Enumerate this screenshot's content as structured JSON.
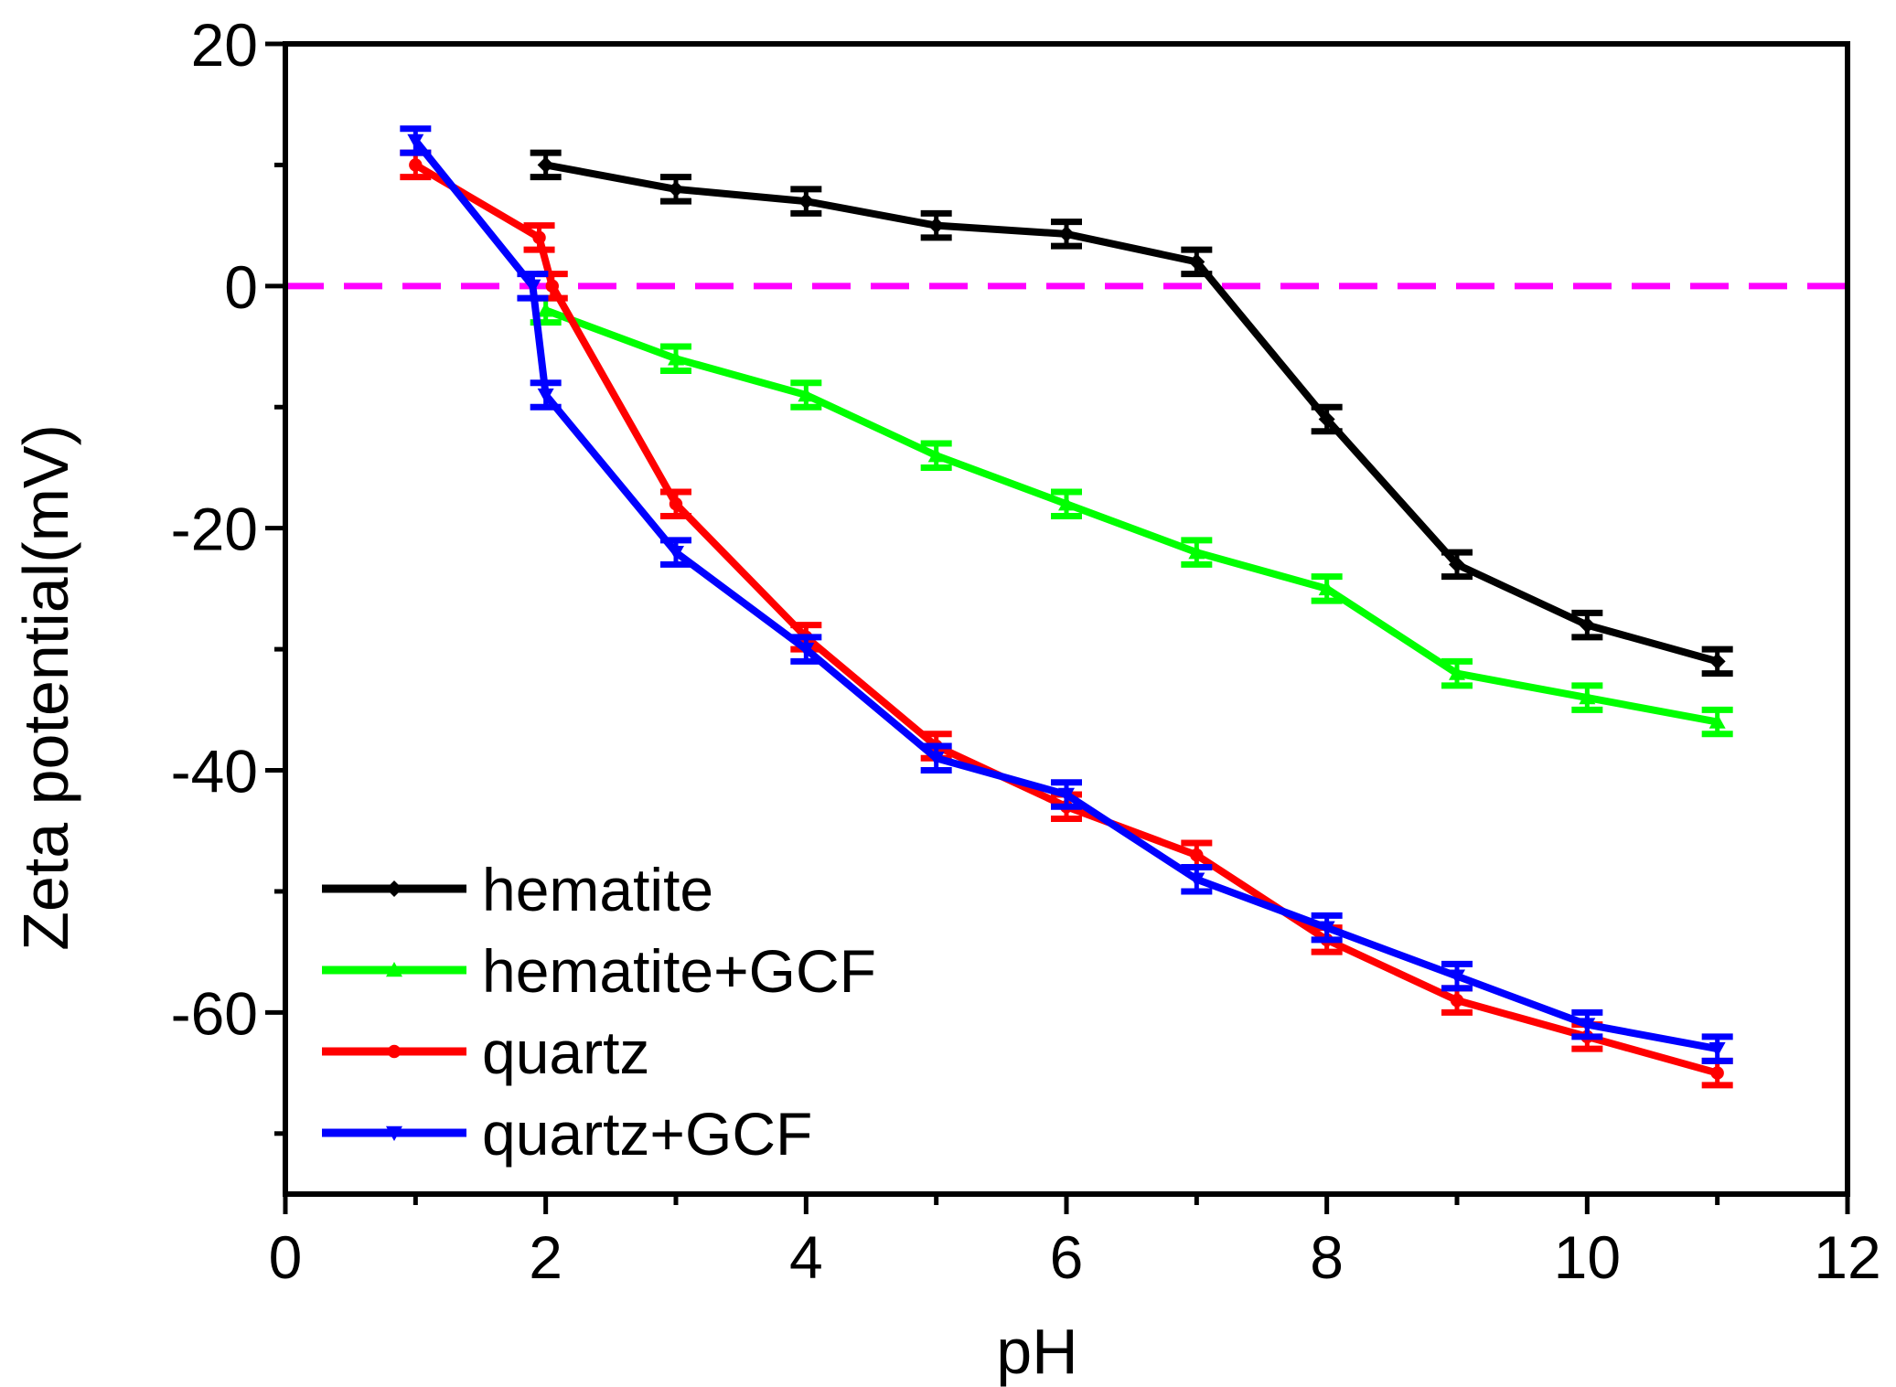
{
  "chart_data": {
    "type": "line",
    "title": "",
    "xlabel": "pH",
    "ylabel": "Zeta potential(mV)",
    "xlim": [
      0,
      12
    ],
    "ylim": [
      -75,
      20
    ],
    "xticks": [
      0,
      2,
      4,
      6,
      8,
      10,
      12
    ],
    "yticks": [
      20,
      0,
      -20,
      -40,
      -60
    ],
    "grid": false,
    "legend_position": "bottom-left",
    "reference_line": {
      "y": 0,
      "color": "#ff00ff",
      "style": "dashed"
    },
    "series": [
      {
        "name": "hematite",
        "color": "#000000",
        "marker": "diamond",
        "x": [
          2,
          3,
          4,
          5,
          6,
          7,
          8,
          9,
          10,
          11
        ],
        "y": [
          10,
          8,
          7,
          5,
          4.3,
          2,
          -11,
          -23,
          -28,
          -31
        ],
        "err": [
          1,
          1,
          1,
          1,
          1,
          1,
          1,
          1,
          1,
          1
        ]
      },
      {
        "name": "hematite+GCF",
        "color": "#00ff00",
        "marker": "triangle-up",
        "x": [
          2,
          3,
          4,
          5,
          6,
          7,
          8,
          9,
          10,
          11
        ],
        "y": [
          -2,
          -6,
          -9,
          -14,
          -18,
          -22,
          -25,
          -32,
          -34,
          -36
        ],
        "err": [
          1,
          1,
          1,
          1,
          1,
          1,
          1,
          1,
          1,
          1
        ]
      },
      {
        "name": "quartz",
        "color": "#ff0000",
        "marker": "circle",
        "x": [
          1,
          1.95,
          2.05,
          3,
          4,
          5,
          6,
          7,
          8,
          9,
          10,
          11
        ],
        "y": [
          10,
          4,
          0,
          -18,
          -29,
          -38,
          -43,
          -47,
          -54,
          -59,
          -62,
          -65
        ],
        "err": [
          1,
          1,
          1,
          1,
          1,
          1,
          1,
          1,
          1,
          1,
          1,
          1
        ]
      },
      {
        "name": "quartz+GCF",
        "color": "#0000ff",
        "marker": "triangle-down",
        "x": [
          1,
          1.9,
          2,
          3,
          4,
          5,
          6,
          7,
          8,
          9,
          10,
          11
        ],
        "y": [
          12,
          0,
          -9,
          -22,
          -30,
          -39,
          -42,
          -49,
          -53,
          -57,
          -61,
          -63
        ],
        "err": [
          1,
          1,
          1,
          1,
          1,
          1,
          1,
          1,
          1,
          1,
          1,
          1
        ]
      }
    ]
  }
}
